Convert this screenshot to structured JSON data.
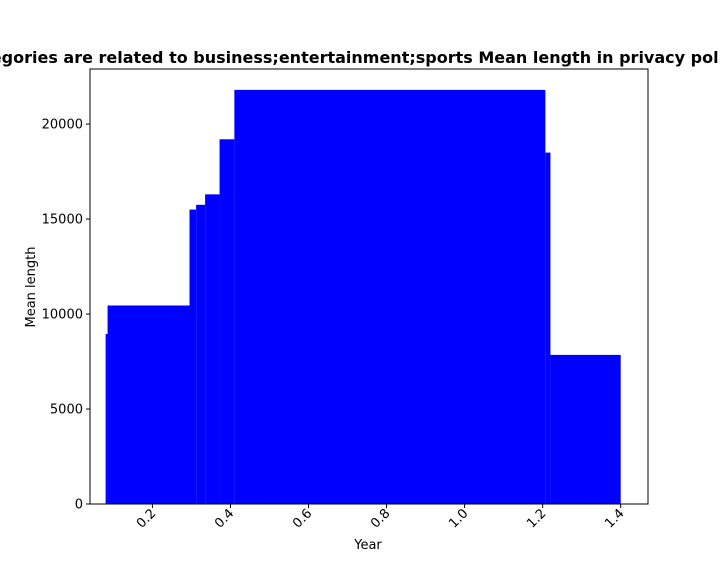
{
  "chart_data": {
    "type": "bar",
    "title": "Categories are related to business;entertainment;sports Mean length in privacy policies",
    "xlabel": "Year",
    "ylabel": "Mean length",
    "xlim": [
      0.04,
      1.47
    ],
    "ylim": [
      0,
      22900
    ],
    "xticks": [
      "0.2",
      "0.4",
      "0.6",
      "0.8",
      "1.0",
      "1.2",
      "1.4"
    ],
    "xtick_values": [
      0.2,
      0.4,
      0.6,
      0.8,
      1.0,
      1.2,
      1.4
    ],
    "xtick_rotation": 45,
    "yticks": [
      "0",
      "5000",
      "10000",
      "15000",
      "20000"
    ],
    "ytick_values": [
      0,
      5000,
      10000,
      15000,
      20000
    ],
    "bar_color": "#0000ff",
    "series": [
      {
        "bars": [
          {
            "x0": 0.08,
            "x1": 0.085,
            "value": 8950
          },
          {
            "x0": 0.085,
            "x1": 0.295,
            "value": 10450
          },
          {
            "x0": 0.295,
            "x1": 0.312,
            "value": 15500
          },
          {
            "x0": 0.312,
            "x1": 0.335,
            "value": 15750
          },
          {
            "x0": 0.335,
            "x1": 0.372,
            "value": 16300
          },
          {
            "x0": 0.372,
            "x1": 0.41,
            "value": 19200
          },
          {
            "x0": 0.41,
            "x1": 1.207,
            "value": 21800
          },
          {
            "x0": 1.207,
            "x1": 1.22,
            "value": 18500
          },
          {
            "x0": 1.22,
            "x1": 1.4,
            "value": 7850
          }
        ]
      }
    ]
  }
}
